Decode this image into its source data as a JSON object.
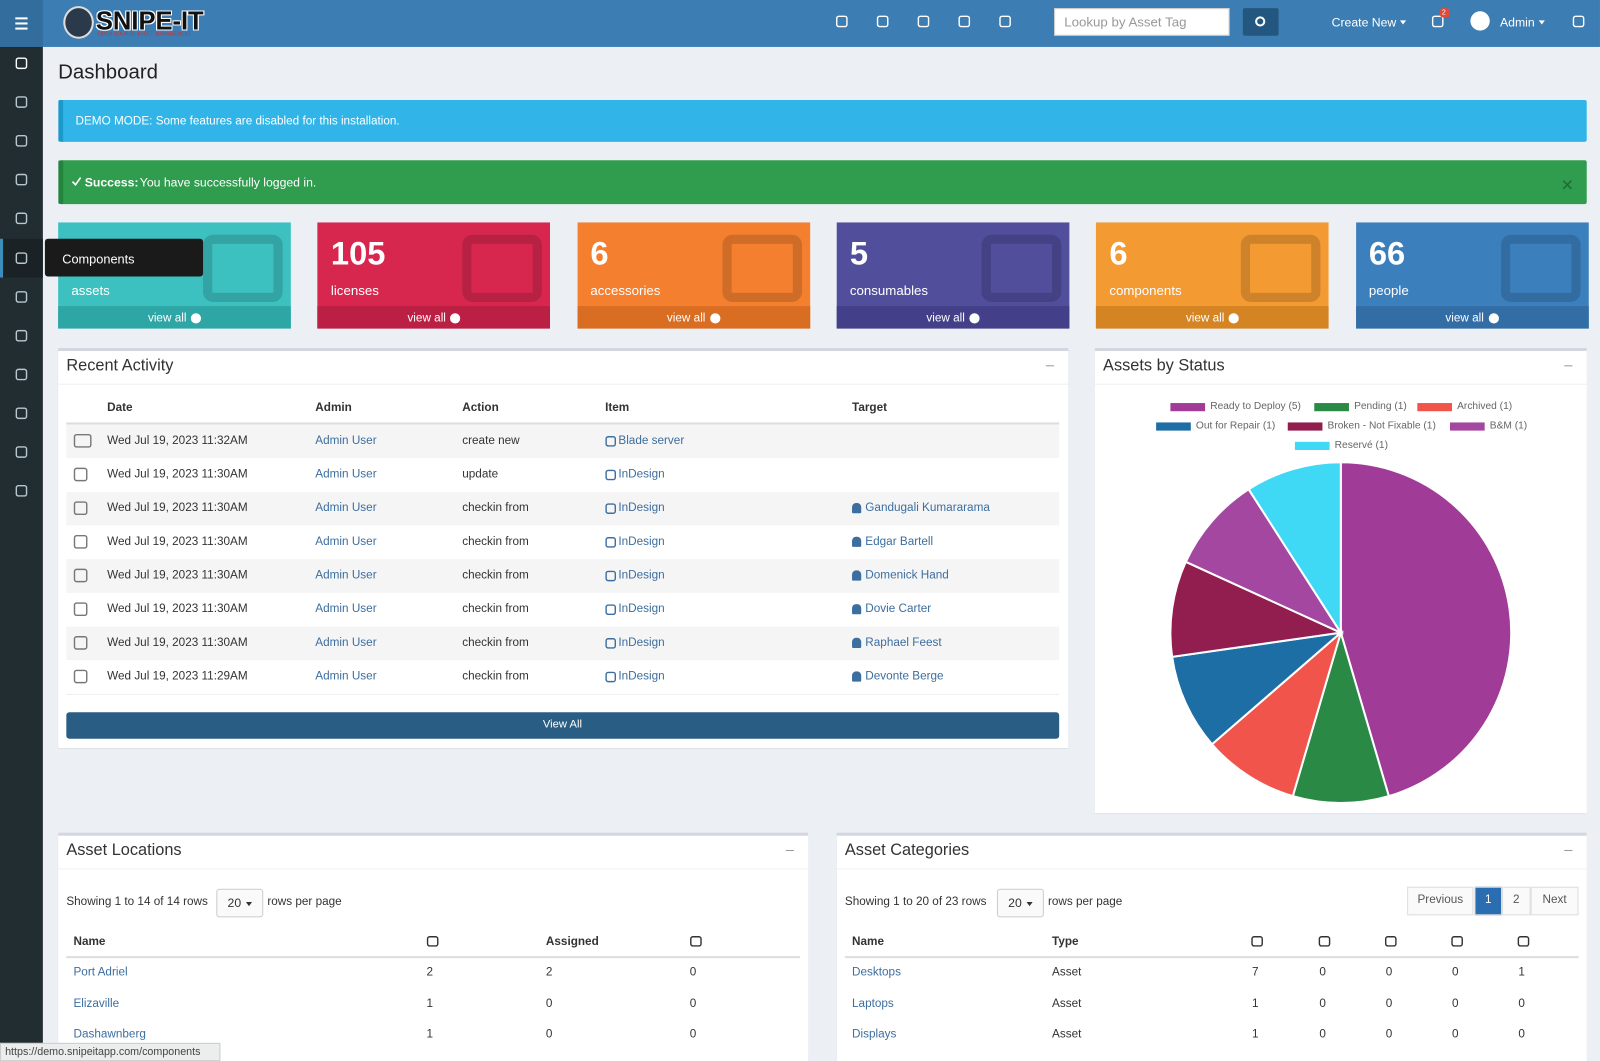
{
  "header": {
    "logo": "SNIPE-IT",
    "logo_sub": "OPEN SOURCE ASSET MANAGEMENT",
    "search_placeholder": "Lookup by Asset Tag",
    "create_new": "Create New",
    "notifications": "2",
    "user": "Admin"
  },
  "sidebar": {
    "tooltip": "Components",
    "status_url": "https://demo.snipeitapp.com/components"
  },
  "page_title": "Dashboard",
  "alerts": {
    "demo": "DEMO MODE: Some features are disabled for this installation.",
    "success_label": "Success:",
    "success_text": "You have successfully logged in."
  },
  "tiles": [
    {
      "label": "assets",
      "link": "view all"
    },
    {
      "count": 105,
      "label": "licenses",
      "link": "view all"
    },
    {
      "count": 6,
      "label": "accessories",
      "link": "view all"
    },
    {
      "count": 5,
      "label": "consumables",
      "link": "view all"
    },
    {
      "count": 6,
      "label": "components",
      "link": "view all"
    },
    {
      "count": 66,
      "label": "people",
      "link": "view all"
    }
  ],
  "recent_activity": {
    "title": "Recent Activity",
    "columns": {
      "date": "Date",
      "admin": "Admin",
      "action": "Action",
      "item": "Item",
      "target": "Target"
    },
    "rows": [
      {
        "date": "Wed Jul 19, 2023 11:32AM",
        "admin": "Admin User",
        "action": "create new",
        "item": "Blade server"
      },
      {
        "date": "Wed Jul 19, 2023 11:30AM",
        "admin": "Admin User",
        "action": "update",
        "item": "InDesign"
      },
      {
        "date": "Wed Jul 19, 2023 11:30AM",
        "admin": "Admin User",
        "action": "checkin from",
        "item": "InDesign",
        "target": "Gandugali Kumararama"
      },
      {
        "date": "Wed Jul 19, 2023 11:30AM",
        "admin": "Admin User",
        "action": "checkin from",
        "item": "InDesign",
        "target": "Edgar Bartell"
      },
      {
        "date": "Wed Jul 19, 2023 11:30AM",
        "admin": "Admin User",
        "action": "checkin from",
        "item": "InDesign",
        "target": "Domenick Hand"
      },
      {
        "date": "Wed Jul 19, 2023 11:30AM",
        "admin": "Admin User",
        "action": "checkin from",
        "item": "InDesign",
        "target": "Dovie Carter"
      },
      {
        "date": "Wed Jul 19, 2023 11:30AM",
        "admin": "Admin User",
        "action": "checkin from",
        "item": "InDesign",
        "target": "Raphael Feest"
      },
      {
        "date": "Wed Jul 19, 2023 11:29AM",
        "admin": "Admin User",
        "action": "checkin from",
        "item": "InDesign",
        "target": "Devonte Berge"
      }
    ],
    "button": "View All"
  },
  "chart_data": {
    "type": "pie",
    "title": "Assets by Status",
    "labels": [
      "Ready to Deploy (5)",
      "Pending (1)",
      "Archived (1)",
      "Out for Repair (1)",
      "Broken - Not Fixable (1)",
      "B&M (1)",
      "Reservé (1)"
    ],
    "values": [
      5,
      1,
      1,
      1,
      1,
      1,
      1
    ],
    "colors": [
      "#a03b98",
      "#2a8a45",
      "#f0544a",
      "#1c6ea4",
      "#921e50",
      "#a447a0",
      "#40d9f5"
    ],
    "legend": "top"
  },
  "asset_locations": {
    "title": "Asset Locations",
    "showing": "Showing 1 to 14 of 14 rows",
    "page_size": "20",
    "rows_per_page": "rows per page",
    "columns": {
      "name": "Name",
      "assigned": "Assigned"
    },
    "rows": [
      [
        "Port Adriel",
        2,
        2,
        0
      ],
      [
        "Elizaville",
        1,
        0,
        0
      ],
      [
        "Dashawnberg",
        1,
        0,
        0
      ]
    ]
  },
  "asset_categories": {
    "title": "Asset Categories",
    "showing": "Showing 1 to 20 of 23 rows",
    "page_size": "20",
    "rows_per_page": "rows per page",
    "pagination": [
      "Previous",
      "1",
      "2",
      "Next"
    ],
    "columns": {
      "name": "Name",
      "type": "Type"
    },
    "rows": [
      [
        "Desktops",
        "Asset",
        7,
        0,
        0,
        0,
        1
      ],
      [
        "Laptops",
        "Asset",
        1,
        0,
        0,
        0,
        0
      ],
      [
        "Displays",
        "Asset",
        1,
        0,
        0,
        0,
        0
      ]
    ]
  }
}
